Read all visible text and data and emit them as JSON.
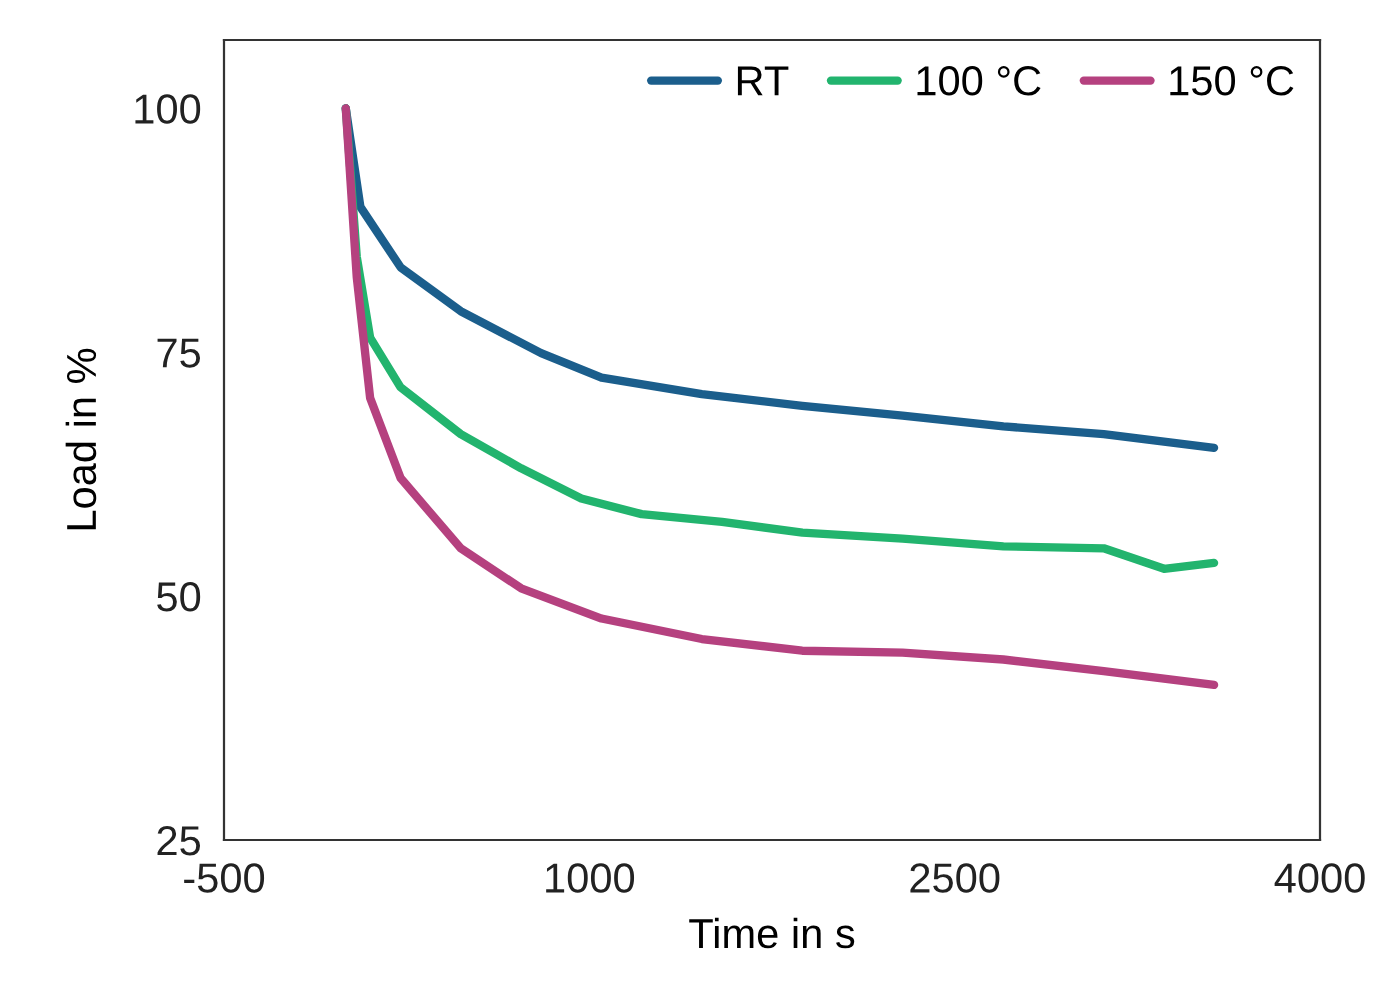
{
  "chart_data": {
    "type": "line",
    "xlabel": "Time in s",
    "ylabel": "Load in %",
    "xlim": [
      -500,
      4000
    ],
    "xticks": [
      -500,
      1000,
      2500,
      4000
    ],
    "ylim": [
      25,
      107
    ],
    "yticks": [
      25,
      50,
      75,
      100
    ],
    "grid": false,
    "legend": "top right",
    "marker": "none",
    "line_style": "solid",
    "series": [
      {
        "name": "RT",
        "color": "#1b5e8c",
        "x": [
          0,
          60,
          225,
          472,
          802,
          1050,
          1462,
          1874,
          2286,
          2700,
          3112,
          3565
        ],
        "values": [
          100,
          89.9,
          83.7,
          79.2,
          74.9,
          72.4,
          70.7,
          69.5,
          68.5,
          67.4,
          66.6,
          65.2
        ]
      },
      {
        "name": "100 °C",
        "color": "#22b46e",
        "x": [
          0,
          45,
          100,
          225,
          472,
          720,
          967,
          1215,
          1545,
          1875,
          2286,
          2700,
          3112,
          3360,
          3565
        ],
        "values": [
          100,
          84.8,
          76.5,
          71.4,
          66.6,
          63.1,
          60.0,
          58.4,
          57.6,
          56.5,
          55.9,
          55.1,
          54.9,
          52.8,
          53.4
        ]
      },
      {
        "name": "150 °C",
        "color": "#b5417f",
        "x": [
          0,
          45,
          100,
          225,
          472,
          720,
          1050,
          1462,
          1874,
          2286,
          2700,
          3112,
          3565
        ],
        "values": [
          100,
          82.7,
          70.3,
          62.1,
          54.9,
          50.8,
          47.7,
          45.6,
          44.4,
          44.2,
          43.5,
          42.3,
          40.9
        ]
      }
    ]
  }
}
